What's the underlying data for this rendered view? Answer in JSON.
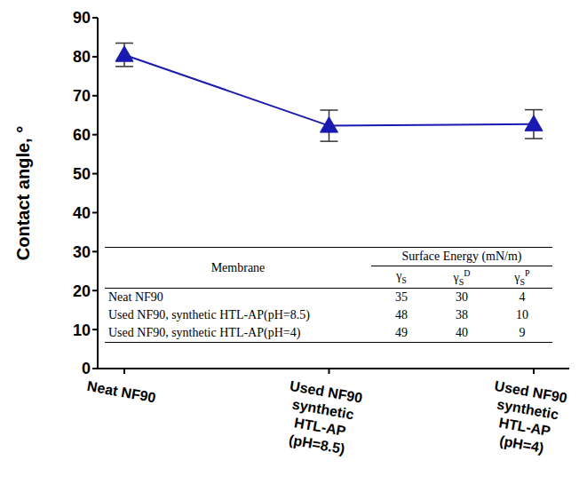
{
  "chart_data": {
    "type": "line",
    "categories": [
      "Neat NF90",
      "Used NF90 synthetic HTL-AP (pH=8.5)",
      "Used NF90 synthetic HTL-AP (pH=4)"
    ],
    "values": [
      80.5,
      62.3,
      62.7
    ],
    "errors": [
      3,
      4,
      3.7
    ],
    "color": "#1a1ab0",
    "marker": "triangle",
    "y_label": "Contact angle, °",
    "ylim": [
      0,
      90
    ],
    "yticks": [
      0,
      10,
      20,
      30,
      40,
      50,
      60,
      70,
      80,
      90
    ],
    "grid": false
  },
  "table": {
    "header": {
      "row_label": "Membrane",
      "group": "Surface Energy (mN/m)",
      "columns": [
        {
          "base": "γ",
          "sub": "S"
        },
        {
          "base": "γ",
          "sub": "S",
          "sup": "D"
        },
        {
          "base": "γ",
          "sub": "S",
          "sup": "P"
        }
      ]
    },
    "rows": [
      {
        "label": "Neat NF90",
        "values": [
          35,
          30,
          4
        ]
      },
      {
        "label": "Used NF90, synthetic HTL-AP(pH=8.5)",
        "values": [
          48,
          38,
          10
        ]
      },
      {
        "label": "Used NF90, synthetic HTL-AP(pH=4)",
        "values": [
          49,
          40,
          9
        ]
      }
    ]
  }
}
